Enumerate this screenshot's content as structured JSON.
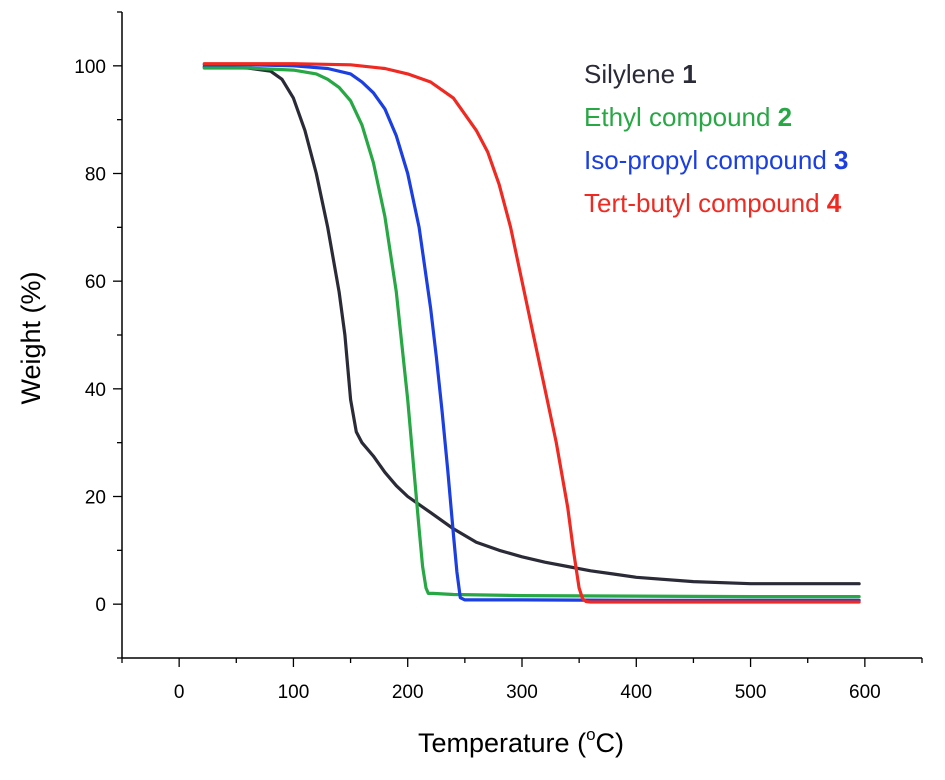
{
  "chart_data": {
    "type": "line",
    "title": "",
    "xlabel": "Temperature",
    "xlabel_unit_prefix": "(",
    "xlabel_unit_sup": "o",
    "xlabel_unit_suffix": "C)",
    "ylabel": "Weight (%)",
    "xlim": [
      -50,
      650
    ],
    "ylim": [
      -10,
      110
    ],
    "xticks": [
      0,
      100,
      200,
      300,
      400,
      500,
      600
    ],
    "xtick_labels": [
      "0",
      "100",
      "200",
      "300",
      "400",
      "500",
      "600"
    ],
    "yticks": [
      0,
      20,
      40,
      60,
      80,
      100
    ],
    "ytick_labels": [
      "0",
      "20",
      "40",
      "60",
      "80",
      "100"
    ],
    "grid": false,
    "legend_position": "top-right",
    "series": [
      {
        "name": "Silylene",
        "number": "1",
        "color": "#2b2b38",
        "x": [
          22,
          60,
          80,
          90,
          100,
          110,
          120,
          130,
          140,
          145,
          150,
          155,
          160,
          170,
          180,
          190,
          200,
          220,
          240,
          260,
          280,
          300,
          320,
          340,
          360,
          380,
          400,
          450,
          500,
          550,
          595
        ],
        "y": [
          99.8,
          99.6,
          99.0,
          97.5,
          94,
          88,
          80,
          70,
          58,
          50,
          38,
          32,
          30,
          27.5,
          24.5,
          22,
          20,
          17,
          14,
          11.5,
          10,
          8.8,
          7.8,
          7,
          6.2,
          5.6,
          5,
          4.2,
          3.8,
          3.8,
          3.8
        ]
      },
      {
        "name": "Ethyl compound",
        "number": "2",
        "color": "#28a745",
        "x": [
          22,
          60,
          100,
          120,
          130,
          140,
          150,
          160,
          170,
          180,
          190,
          200,
          205,
          210,
          213,
          216,
          218,
          222,
          240,
          300,
          400,
          500,
          595
        ],
        "y": [
          99.6,
          99.6,
          99.2,
          98.5,
          97.5,
          96,
          93.5,
          89,
          82,
          72,
          58,
          38,
          26,
          14,
          7,
          3,
          2,
          2,
          1.8,
          1.6,
          1.5,
          1.4,
          1.4
        ]
      },
      {
        "name": "Iso-propyl compound",
        "number": "3",
        "color": "#1b3fe0",
        "x": [
          22,
          60,
          100,
          130,
          150,
          160,
          170,
          180,
          190,
          200,
          210,
          220,
          225,
          230,
          235,
          240,
          243,
          246,
          250,
          300,
          400,
          500,
          595
        ],
        "y": [
          100.2,
          100.2,
          100,
          99.5,
          98.5,
          97,
          95,
          92,
          87,
          80,
          70,
          55,
          46,
          36,
          25,
          13,
          6,
          1.2,
          0.8,
          0.8,
          0.7,
          0.7,
          0.7
        ]
      },
      {
        "name": "Tert-butyl compound",
        "number": "4",
        "color": "#ee2a22",
        "x": [
          22,
          100,
          150,
          180,
          200,
          220,
          240,
          260,
          270,
          280,
          290,
          300,
          310,
          320,
          330,
          340,
          345,
          350,
          353,
          356,
          360,
          400,
          500,
          595
        ],
        "y": [
          100.4,
          100.4,
          100.2,
          99.5,
          98.5,
          97,
          94,
          88,
          84,
          78,
          70,
          60,
          50,
          40,
          30,
          18,
          10,
          3,
          1,
          0.5,
          0.4,
          0.4,
          0.4,
          0.4
        ]
      }
    ]
  }
}
